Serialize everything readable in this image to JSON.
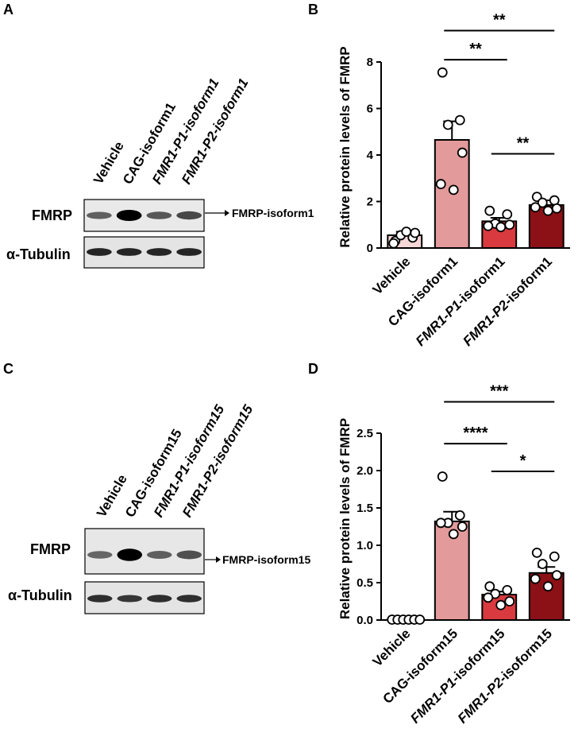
{
  "panels": {
    "A": {
      "letter": "A",
      "lanes": [
        "Vehicle",
        "CAG-isoform1",
        "FMR1-P1-isoform1",
        "FMR1-P2-isoform1"
      ],
      "rows": [
        "FMRP",
        "α-Tubulin"
      ],
      "arrow_label": "FMRP-isoform1",
      "band_intensity": {
        "FMRP": [
          0.45,
          1.0,
          0.5,
          0.6
        ],
        "α-Tubulin": [
          0.8,
          0.8,
          0.8,
          0.8
        ]
      }
    },
    "C": {
      "letter": "C",
      "lanes": [
        "Vehicle",
        "CAG-isoform15",
        "FMR1-P1-isoform15",
        "FMR1-P2-isoform15"
      ],
      "rows": [
        "FMRP",
        "α-Tubulin"
      ],
      "arrow_label": "FMRP-isoform15",
      "band_intensity": {
        "FMRP": [
          0.4,
          1.0,
          0.45,
          0.55
        ],
        "α-Tubulin": [
          0.75,
          0.7,
          0.75,
          0.75
        ]
      }
    }
  },
  "chart_data": [
    {
      "letter": "B",
      "type": "bar",
      "categories": [
        "Vehicle",
        "CAG-isoform1",
        "FMR1-P1-isoform1",
        "FMR1-P2-isoform1"
      ],
      "values": [
        0.55,
        4.65,
        1.15,
        1.85
      ],
      "errors": [
        0.15,
        0.8,
        0.15,
        0.2
      ],
      "points": [
        [
          0.3,
          0.45,
          0.55,
          0.65,
          0.7,
          0.2
        ],
        [
          7.55,
          5.5,
          5.3,
          4.1,
          2.5,
          2.75
        ],
        [
          1.6,
          1.45,
          1.05,
          1.0,
          0.9,
          0.95
        ],
        [
          2.2,
          2.05,
          1.95,
          1.7,
          1.6,
          1.75
        ]
      ],
      "colors": [
        "#f6d6d6",
        "#e39a9a",
        "#d93a3f",
        "#8b1116"
      ],
      "ylabel": "Relative protein levels of FMRP",
      "ylim": [
        0,
        8
      ],
      "yticks": [
        0,
        2,
        4,
        6,
        8
      ],
      "significance": [
        {
          "from": 1,
          "to": 3,
          "label": "**",
          "y": 9.35
        },
        {
          "from": 1,
          "to": 2,
          "label": "**",
          "y": 8.1
        },
        {
          "from": 2,
          "to": 3,
          "label": "**",
          "y": 4.05
        }
      ]
    },
    {
      "letter": "D",
      "type": "bar",
      "categories": [
        "Vehicle",
        "CAG-isoform15",
        "FMR1-P1-isoform15",
        "FMR1-P2-isoform15"
      ],
      "values": [
        0.005,
        1.32,
        0.34,
        0.63
      ],
      "errors": [
        0.003,
        0.13,
        0.04,
        0.08
      ],
      "points": [
        [
          0.005,
          0.005,
          0.005,
          0.005,
          0.005,
          0.005
        ],
        [
          1.92,
          1.4,
          1.3,
          1.25,
          1.15,
          1.3
        ],
        [
          0.45,
          0.4,
          0.35,
          0.25,
          0.2,
          0.3
        ],
        [
          0.9,
          0.85,
          0.75,
          0.6,
          0.45,
          0.55
        ]
      ],
      "colors": [
        "#f6d6d6",
        "#e39a9a",
        "#d93a3f",
        "#8b1116"
      ],
      "ylabel": "Relative protein levels of FMRP",
      "ylim": [
        0,
        2.5
      ],
      "yticks": [
        "0.0",
        "0.5",
        "1.0",
        "1.5",
        "2.0",
        "2.5"
      ],
      "significance": [
        {
          "from": 1,
          "to": 3,
          "label": "***",
          "y": 2.92
        },
        {
          "from": 1,
          "to": 2,
          "label": "****",
          "y": 2.36
        },
        {
          "from": 2,
          "to": 3,
          "label": "*",
          "y": 1.99
        }
      ]
    }
  ]
}
